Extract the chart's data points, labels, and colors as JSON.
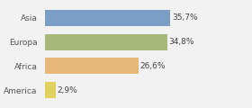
{
  "categories": [
    "Asia",
    "Europa",
    "Africa",
    "America"
  ],
  "values": [
    35.7,
    34.8,
    26.6,
    2.9
  ],
  "labels": [
    "35,7%",
    "34,8%",
    "26,6%",
    "2,9%"
  ],
  "bar_colors": [
    "#7b9ec7",
    "#a8b87a",
    "#e8b87a",
    "#e0d060"
  ],
  "background_color": "#f2f2f2",
  "xlim": [
    0,
    46
  ],
  "bar_xlim": 35.7,
  "label_fontsize": 6.5,
  "tick_fontsize": 6.5
}
